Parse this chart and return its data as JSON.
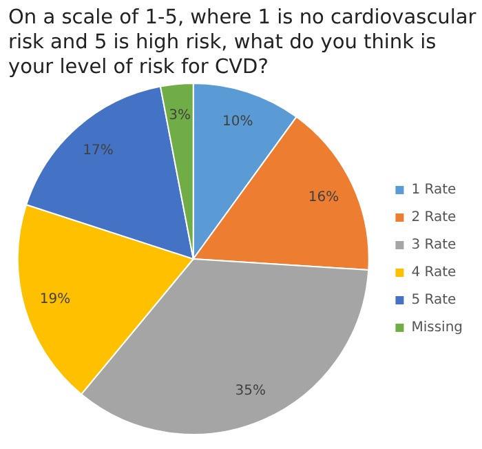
{
  "chart_data": {
    "type": "pie",
    "title": "On a scale of 1-5, where 1 is no cardiovascular risk and 5 is high risk, what do you think is your level of risk for CVD?",
    "categories": [
      "1 Rate",
      "2 Rate",
      "3 Rate",
      "4 Rate",
      "5 Rate",
      "Missing"
    ],
    "values": [
      10,
      16,
      35,
      19,
      17,
      3
    ],
    "value_labels": [
      "10%",
      "16%",
      "35%",
      "19%",
      "17%",
      "3%"
    ],
    "colors": [
      "#5b9bd5",
      "#ed7d31",
      "#a5a5a5",
      "#ffc000",
      "#4472c4",
      "#70ad47"
    ],
    "legend": "right"
  }
}
